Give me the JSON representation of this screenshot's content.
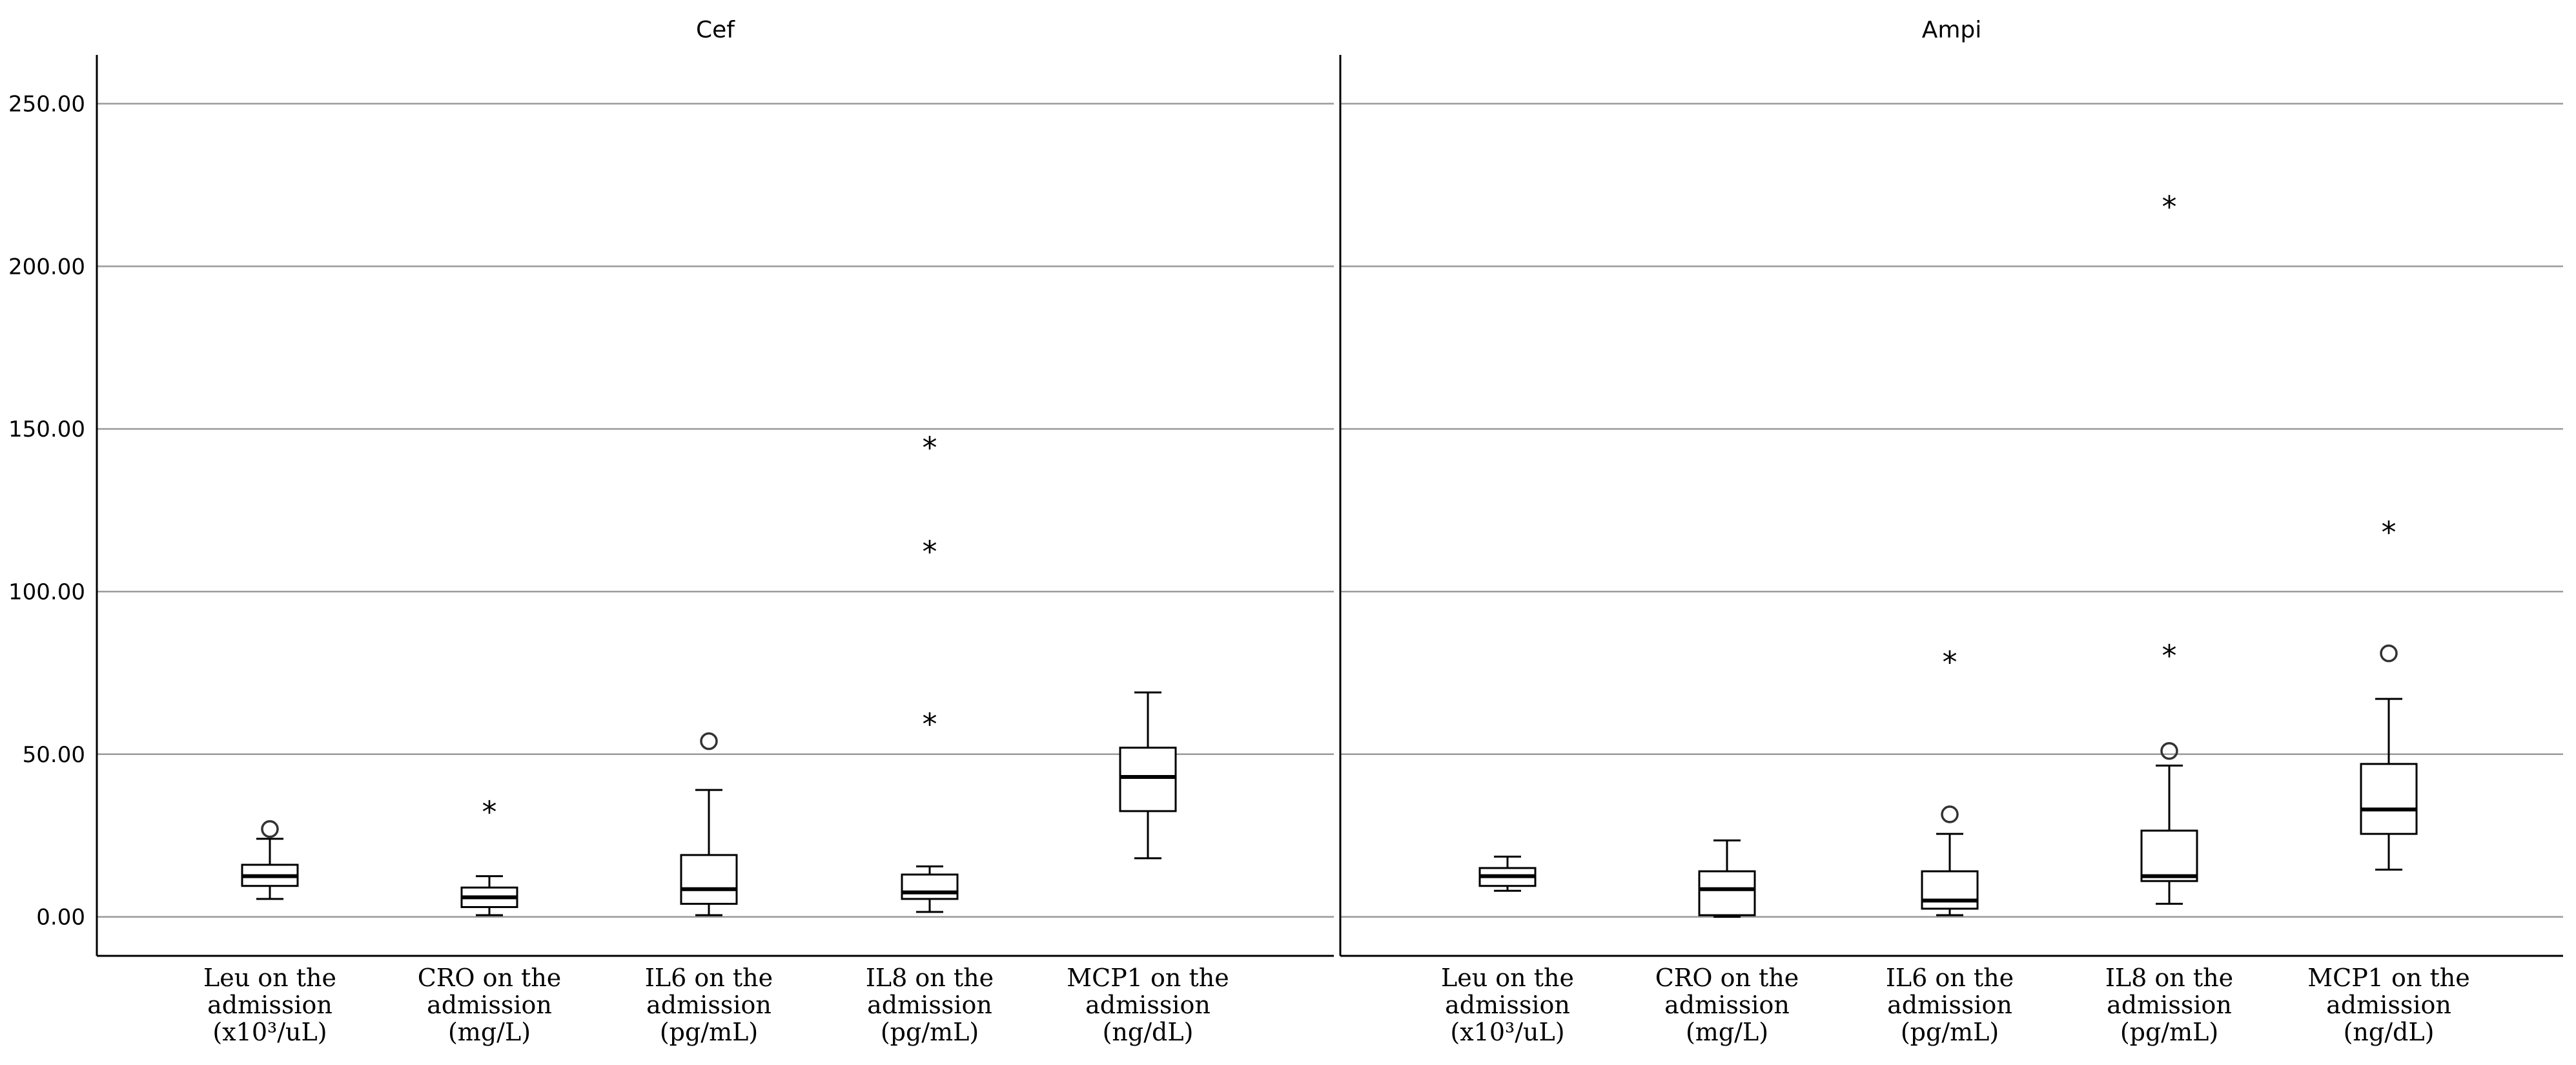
{
  "chart_data": {
    "type": "boxplot",
    "ylim": [
      -12,
      265
    ],
    "y_ticks": [
      0,
      50,
      100,
      150,
      200,
      250
    ],
    "y_tick_labels": [
      "0.00",
      "50.00",
      "100.00",
      "150.00",
      "200.00",
      "250.00"
    ],
    "grid": true,
    "categories": [
      [
        "Leu on the",
        "admission",
        "(x10³/uL)"
      ],
      [
        "CRO on the",
        "admission",
        "(mg/L)"
      ],
      [
        "IL6 on the",
        "admission",
        "(pg/mL)"
      ],
      [
        "IL8 on the",
        "admission",
        "(pg/mL)"
      ],
      [
        "MCP1 on the",
        "admission",
        "(ng/dL)"
      ]
    ],
    "panels": [
      {
        "title": "Cef",
        "boxes": [
          {
            "whisker_low": 5.5,
            "q1": 9.5,
            "median": 12.5,
            "q3": 16,
            "whisker_high": 24,
            "outliers": [
              {
                "y": 27,
                "kind": "circle"
              }
            ]
          },
          {
            "whisker_low": 0.5,
            "q1": 3,
            "median": 6,
            "q3": 9,
            "whisker_high": 12.5,
            "outliers": [
              {
                "y": 33,
                "kind": "star"
              }
            ]
          },
          {
            "whisker_low": 0.5,
            "q1": 4,
            "median": 8.5,
            "q3": 19,
            "whisker_high": 39,
            "outliers": [
              {
                "y": 54,
                "kind": "circle"
              }
            ]
          },
          {
            "whisker_low": 1.5,
            "q1": 5.5,
            "median": 7.5,
            "q3": 13,
            "whisker_high": 15.5,
            "outliers": [
              {
                "y": 60,
                "kind": "star"
              },
              {
                "y": 113,
                "kind": "star"
              },
              {
                "y": 145,
                "kind": "star"
              }
            ]
          },
          {
            "whisker_low": 18,
            "q1": 32.5,
            "median": 43,
            "q3": 52,
            "whisker_high": 69,
            "outliers": []
          }
        ]
      },
      {
        "title": "Ampi",
        "boxes": [
          {
            "whisker_low": 8,
            "q1": 9.5,
            "median": 12.5,
            "q3": 15,
            "whisker_high": 18.5,
            "outliers": []
          },
          {
            "whisker_low": 0,
            "q1": 0.5,
            "median": 8.5,
            "q3": 14,
            "whisker_high": 23.5,
            "outliers": []
          },
          {
            "whisker_low": 0.5,
            "q1": 2.5,
            "median": 5,
            "q3": 14,
            "whisker_high": 25.5,
            "outliers": [
              {
                "y": 31.5,
                "kind": "circle"
              },
              {
                "y": 79,
                "kind": "star"
              }
            ]
          },
          {
            "whisker_low": 4,
            "q1": 11,
            "median": 12.5,
            "q3": 26.5,
            "whisker_high": 46.5,
            "outliers": [
              {
                "y": 51,
                "kind": "circle"
              },
              {
                "y": 81,
                "kind": "star"
              },
              {
                "y": 219,
                "kind": "star"
              }
            ]
          },
          {
            "whisker_low": 14.5,
            "q1": 25.5,
            "median": 33,
            "q3": 47,
            "whisker_high": 67,
            "outliers": [
              {
                "y": 81,
                "kind": "circle"
              },
              {
                "y": 119,
                "kind": "star"
              }
            ]
          }
        ]
      }
    ]
  }
}
